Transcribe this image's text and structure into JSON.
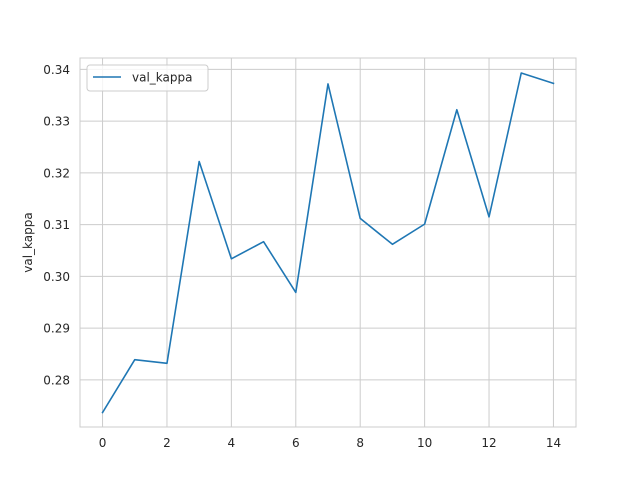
{
  "chart_data": {
    "type": "line",
    "title": "",
    "xlabel": "",
    "ylabel": "val_kappa",
    "x": [
      0,
      1,
      2,
      3,
      4,
      5,
      6,
      7,
      8,
      9,
      10,
      11,
      12,
      13,
      14
    ],
    "series": [
      {
        "name": "val_kappa",
        "color": "#1f77b4",
        "values": [
          0.2737,
          0.2839,
          0.2832,
          0.3222,
          0.3034,
          0.3067,
          0.2969,
          0.3372,
          0.3112,
          0.3062,
          0.3101,
          0.3322,
          0.3115,
          0.3393,
          0.3373
        ]
      }
    ],
    "xlim": [
      -0.7,
      14.7
    ],
    "ylim": [
      0.2709,
      0.3422
    ],
    "xticks": [
      0,
      2,
      4,
      6,
      8,
      10,
      12,
      14
    ],
    "xtick_labels": [
      "0",
      "2",
      "4",
      "6",
      "8",
      "10",
      "12",
      "14"
    ],
    "yticks": [
      0.28,
      0.29,
      0.3,
      0.31,
      0.32,
      0.33,
      0.34
    ],
    "ytick_labels": [
      "0.28",
      "0.29",
      "0.30",
      "0.31",
      "0.32",
      "0.33",
      "0.34"
    ],
    "grid": true,
    "legend_position": "upper-left",
    "grid_color": "#cccccc",
    "axes_color": "#cccccc"
  }
}
